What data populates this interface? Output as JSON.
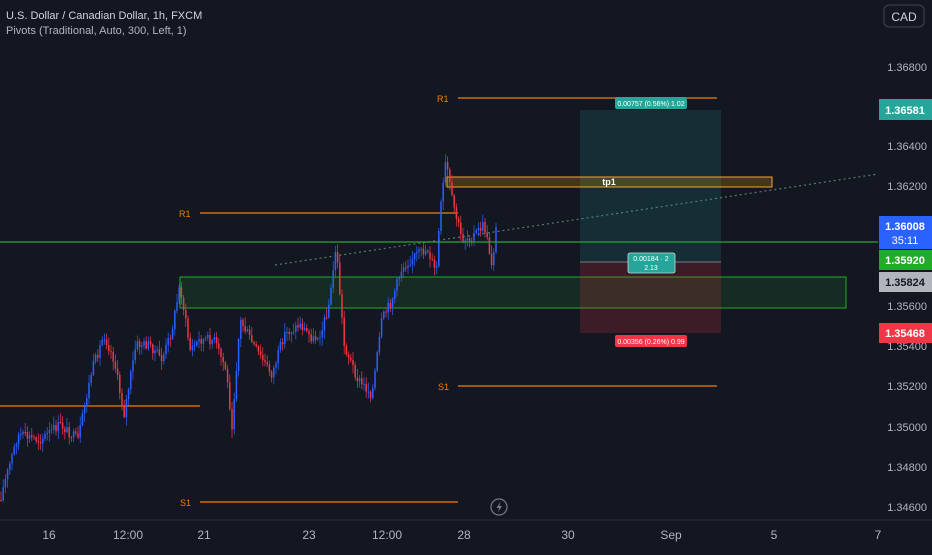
{
  "header": {
    "symbol_line": "U.S. Dollar / Canadian Dollar, 1h, FXCM",
    "indicator_line": "Pivots (Traditional, Auto, 300, Left, 1)",
    "currency_button": "CAD"
  },
  "colors": {
    "background": "#131722",
    "up_candle": "#2962ff",
    "down_candle": "#f23645",
    "pivot_line": "#f57c00",
    "green_line": "#22ab2a",
    "target_zone": "#26a69a",
    "stop_zone": "#f23645"
  },
  "price_axis": {
    "ticks": [
      "1.36800",
      "1.36600",
      "1.36400",
      "1.36200",
      "1.36000",
      "1.35800",
      "1.35600",
      "1.35400",
      "1.35200",
      "1.35000",
      "1.34800",
      "1.34600"
    ]
  },
  "time_axis": {
    "ticks": [
      "16",
      "12:00",
      "21",
      "23",
      "12:00",
      "28",
      "30",
      "Sep",
      "5",
      "7"
    ]
  },
  "price_tags": {
    "target": "1.36581",
    "current": "1.36008",
    "countdown": "35:11",
    "green_level": "1.35920",
    "gray_level": "1.35824",
    "stop": "1.35468"
  },
  "pivot_labels": {
    "r1_upper": "R1",
    "r1_lower": "R1",
    "s1_upper": "S1",
    "s1_lower": "S1"
  },
  "zones": {
    "tp_label": "tp1"
  },
  "position": {
    "target_label": "0.00757 (0.56%) 1.02",
    "mid_line1": "0.00184 · 2",
    "mid_line2": "2.13",
    "stop_label": "0.00356 (0.26%) 0.99"
  },
  "icons": {
    "replay": "lightning-icon"
  }
}
